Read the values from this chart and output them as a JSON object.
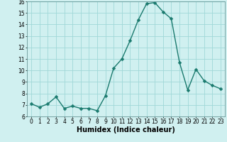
{
  "x": [
    0,
    1,
    2,
    3,
    4,
    5,
    6,
    7,
    8,
    9,
    10,
    11,
    12,
    13,
    14,
    15,
    16,
    17,
    18,
    19,
    20,
    21,
    22,
    23
  ],
  "y": [
    7.1,
    6.8,
    7.1,
    7.7,
    6.7,
    6.9,
    6.7,
    6.7,
    6.5,
    7.8,
    10.2,
    11.0,
    12.6,
    14.4,
    15.8,
    15.9,
    15.1,
    14.5,
    10.7,
    8.3,
    10.1,
    9.1,
    8.7,
    8.4
  ],
  "line_color": "#1a7a6e",
  "marker_color": "#1a7a6e",
  "bg_color": "#d0f0f0",
  "grid_color": "#a0d8d8",
  "xlabel": "Humidex (Indice chaleur)",
  "ylim": [
    6,
    16
  ],
  "xlim_min": -0.5,
  "xlim_max": 23.5,
  "yticks": [
    6,
    7,
    8,
    9,
    10,
    11,
    12,
    13,
    14,
    15,
    16
  ],
  "xticks": [
    0,
    1,
    2,
    3,
    4,
    5,
    6,
    7,
    8,
    9,
    10,
    11,
    12,
    13,
    14,
    15,
    16,
    17,
    18,
    19,
    20,
    21,
    22,
    23
  ],
  "tick_label_fontsize": 5.5,
  "xlabel_fontsize": 7,
  "line_width": 1.0,
  "marker_size": 2.5
}
